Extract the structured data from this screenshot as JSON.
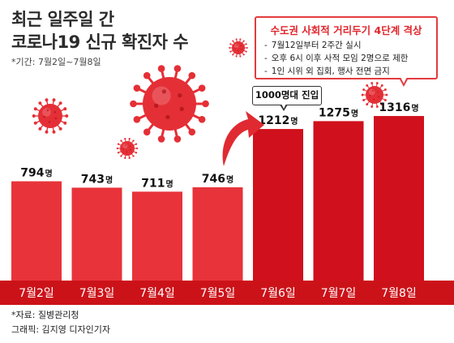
{
  "title_lines": [
    "최근 일주일 간",
    "코로나19 신규 확진자 수"
  ],
  "subtitle": "*기간: 7월2일~7월8일",
  "callout": {
    "title": "수도권 사회적 거리두기 4단계 격상",
    "items": [
      "7월12일부터 2주간 실시",
      "오후 6시 이후 사적 모임 2명으로 제한",
      "1인 시위 외 집회, 행사 전면 금지"
    ]
  },
  "annotation": "1000명대 진입",
  "source": "*자료: 질병관리청",
  "credit": "그래픽: 김지영 디자인기자",
  "colors": {
    "bar_light": "#e8333a",
    "bar_dark": "#d0101c",
    "axis_band": "#cc1219",
    "arrow": "#e02a31",
    "virus": "#e52f36"
  },
  "chart_data": {
    "type": "bar",
    "categories": [
      "7월2일",
      "7월3일",
      "7월4일",
      "7월5일",
      "7월6일",
      "7월7일",
      "7월8일"
    ],
    "values": [
      794,
      743,
      711,
      746,
      1212,
      1275,
      1316
    ],
    "value_unit": "명",
    "ylim": [
      0,
      1400
    ],
    "grid": false,
    "legend": "none"
  }
}
